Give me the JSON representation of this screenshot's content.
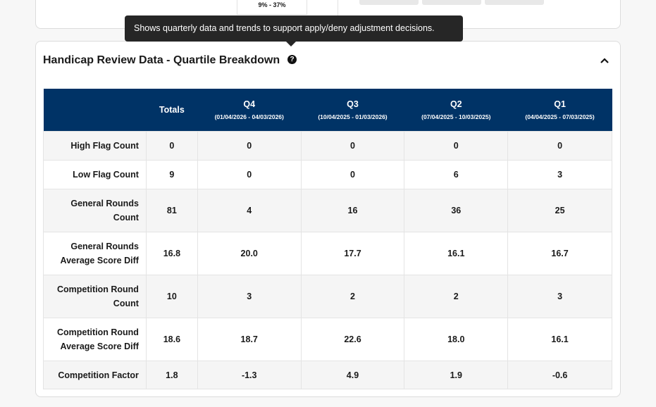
{
  "top_card": {
    "range_text": "9% - 37%"
  },
  "tooltip": "Shows quarterly data and trends to support apply/deny adjustment decisions.",
  "section": {
    "title": "Handicap Review Data - Quartile Breakdown",
    "table": {
      "columns": [
        {
          "label": "Totals"
        },
        {
          "label": "Q4",
          "range": "(01/04/2026 - 04/03/2026)"
        },
        {
          "label": "Q3",
          "range": "(10/04/2025 - 01/03/2026)"
        },
        {
          "label": "Q2",
          "range": "(07/04/2025 - 10/03/2025)"
        },
        {
          "label": "Q1",
          "range": "(04/04/2025 - 07/03/2025)"
        }
      ],
      "rows": [
        {
          "label": "High Flag Count",
          "values": [
            "0",
            "0",
            "0",
            "0",
            "0"
          ]
        },
        {
          "label": "Low Flag Count",
          "values": [
            "9",
            "0",
            "0",
            "6",
            "3"
          ]
        },
        {
          "label": "General Rounds Count",
          "values": [
            "81",
            "4",
            "16",
            "36",
            "25"
          ]
        },
        {
          "label": "General Rounds Average Score Diff",
          "values": [
            "16.8",
            "20.0",
            "17.7",
            "16.1",
            "16.7"
          ]
        },
        {
          "label": "Competition Round Count",
          "values": [
            "10",
            "3",
            "2",
            "2",
            "3"
          ]
        },
        {
          "label": "Competition Round Average Score Diff",
          "values": [
            "18.6",
            "18.7",
            "22.6",
            "18.0",
            "16.1"
          ]
        },
        {
          "label": "Competition Factor",
          "values": [
            "1.8",
            "-1.3",
            "4.9",
            "1.9",
            "-0.6"
          ]
        }
      ]
    }
  }
}
